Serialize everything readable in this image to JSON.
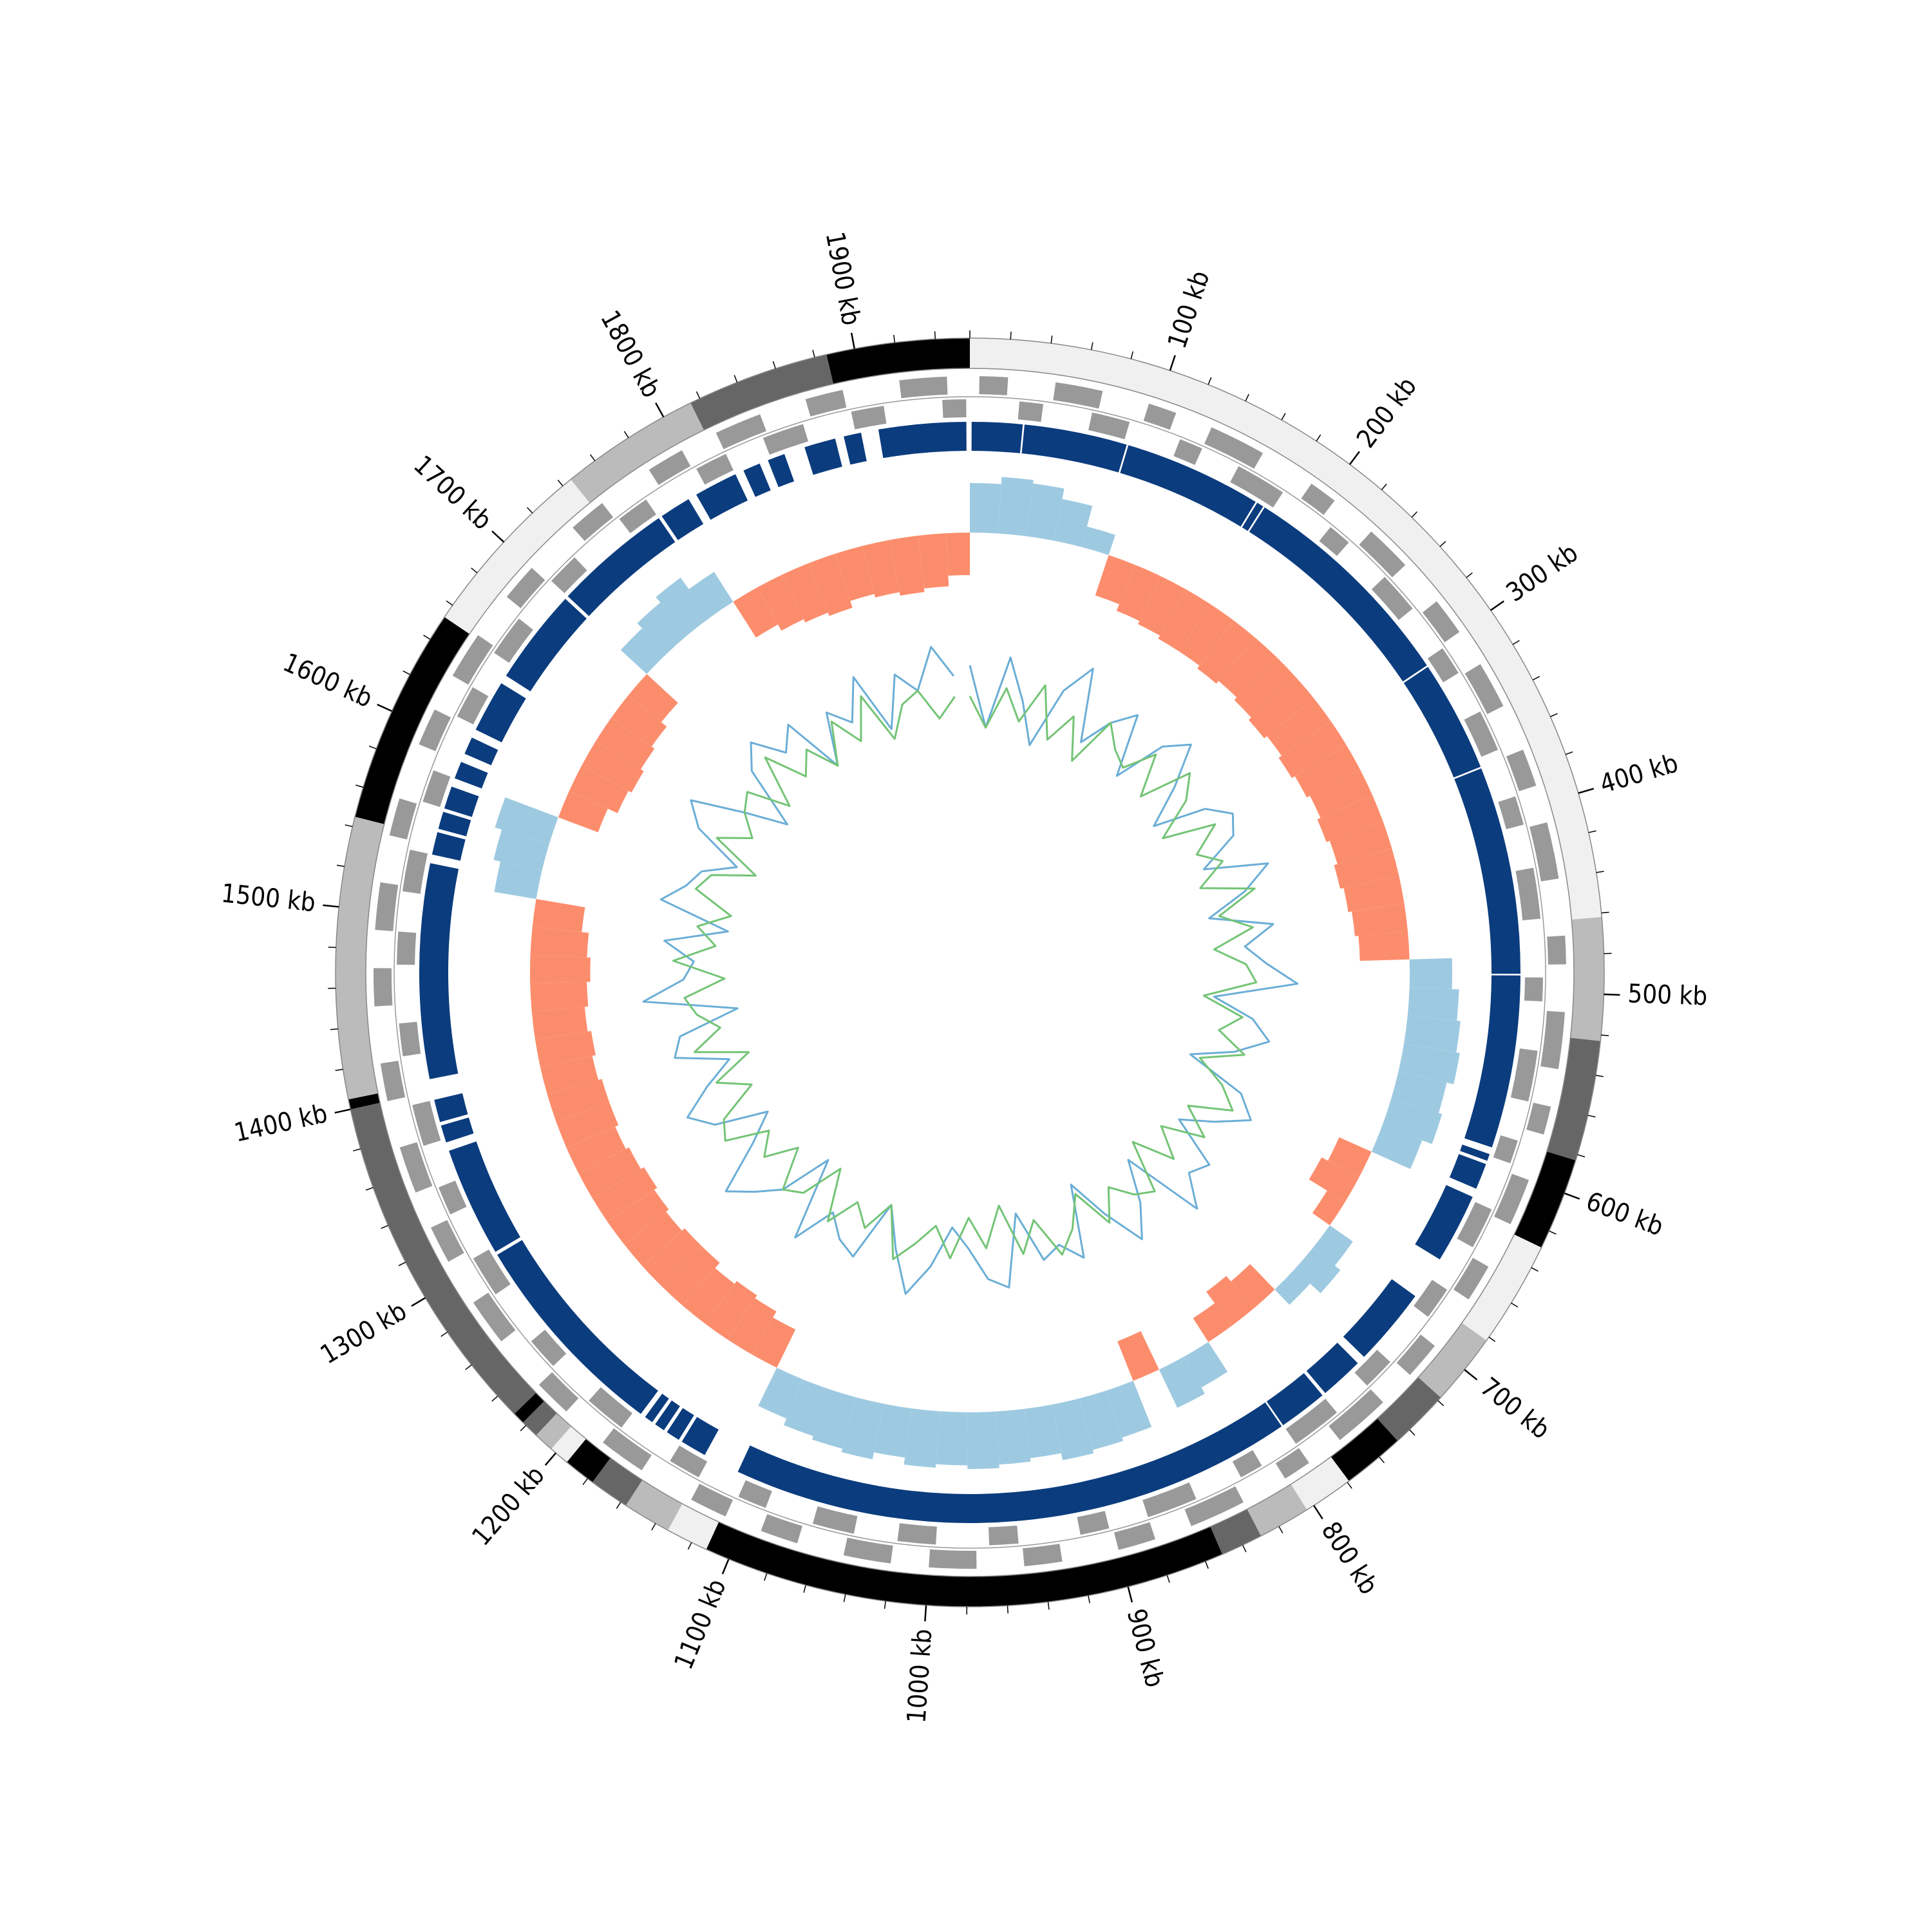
{
  "chart_data": {
    "type": "circular",
    "xlim": [
      0,
      1957
    ],
    "xticks": [
      {
        "value": 100,
        "label": "100 kb"
      },
      {
        "value": 200,
        "label": "200 kb"
      },
      {
        "value": 300,
        "label": "300 kb"
      },
      {
        "value": 400,
        "label": "400 kb"
      },
      {
        "value": 500,
        "label": "500 kb"
      },
      {
        "value": 600,
        "label": "600 kb"
      },
      {
        "value": 700,
        "label": "700 kb"
      },
      {
        "value": 800,
        "label": "800 kb"
      },
      {
        "value": 900,
        "label": "900 kb"
      },
      {
        "value": 1000,
        "label": "1000 kb"
      },
      {
        "value": 1100,
        "label": "1100 kb"
      },
      {
        "value": 1200,
        "label": "1200 kb"
      },
      {
        "value": 1300,
        "label": "1300 kb"
      },
      {
        "value": 1400,
        "label": "1400 kb"
      },
      {
        "value": 1500,
        "label": "1500 kb"
      },
      {
        "value": 1600,
        "label": "1600 kb"
      },
      {
        "value": 1700,
        "label": "1700 kb"
      },
      {
        "value": 1800,
        "label": "1800 kb"
      },
      {
        "value": 1900,
        "label": "1900 kb"
      }
    ],
    "minor_xticks": [
      0,
      20,
      40,
      60,
      80,
      120,
      140,
      160,
      180,
      220,
      240,
      260,
      280,
      320,
      340,
      360,
      380,
      420,
      440,
      460,
      480,
      520,
      540,
      560,
      580,
      620,
      640,
      660,
      680,
      720,
      740,
      760,
      780,
      820,
      840,
      860,
      880,
      920,
      940,
      960,
      980,
      1020,
      1040,
      1060,
      1080,
      1120,
      1140,
      1160,
      1180,
      1220,
      1240,
      1260,
      1280,
      1320,
      1340,
      1360,
      1380,
      1420,
      1440,
      1460,
      1480,
      1520,
      1540,
      1560,
      1580,
      1620,
      1640,
      1660,
      1680,
      1720,
      1740,
      1760,
      1780,
      1820,
      1840,
      1860,
      1880,
      1920,
      1940
    ],
    "bands": {
      "starts": [
        0,
        462,
        523,
        583,
        629,
        682,
        718,
        748,
        779,
        804,
        830,
        851,
        1112,
        1133,
        1157,
        1177,
        1193,
        1203,
        1213,
        1222,
        1228,
        1400,
        1405,
        1545,
        1653,
        1745,
        1815,
        1886
      ],
      "ends": [
        462,
        523,
        583,
        629,
        682,
        718,
        748,
        779,
        804,
        830,
        851,
        1112,
        1133,
        1157,
        1177,
        1193,
        1203,
        1213,
        1222,
        1228,
        1400,
        1405,
        1545,
        1653,
        1745,
        1815,
        1886,
        1957
      ],
      "colors": [
        "#f0f0f0",
        "#bbbbbb",
        "#666666",
        "#000000",
        "#f0f0f0",
        "#bbbbbb",
        "#666666",
        "#000000",
        "#f0f0f0",
        "#bbbbbb",
        "#666666",
        "#000000",
        "#f0f0f0",
        "#bbbbbb",
        "#666666",
        "#000000",
        "#f0f0f0",
        "#bbbbbb",
        "#666666",
        "#000000",
        "#666666",
        "#000000",
        "#bbbbbb",
        "#000000",
        "#f0f0f0",
        "#bbbbbb",
        "#666666",
        "#000000"
      ]
    },
    "genes": {
      "color": "#999999",
      "forward": [
        [
          5,
          20
        ],
        [
          45,
          70
        ],
        [
          95,
          110
        ],
        [
          130,
          160
        ],
        [
          190,
          205
        ],
        [
          230,
          255
        ],
        [
          280,
          300
        ],
        [
          320,
          345
        ],
        [
          370,
          390
        ],
        [
          410,
          440
        ],
        [
          470,
          485
        ],
        [
          510,
          540
        ],
        [
          560,
          575
        ],
        [
          600,
          625
        ],
        [
          650,
          670
        ],
        [
          700,
          720
        ],
        [
          740,
          770
        ],
        [
          790,
          805
        ],
        [
          830,
          860
        ],
        [
          880,
          900
        ],
        [
          930,
          950
        ],
        [
          975,
          1000
        ],
        [
          1020,
          1045
        ],
        [
          1070,
          1090
        ],
        [
          1110,
          1130
        ],
        [
          1160,
          1185
        ],
        [
          1210,
          1230
        ],
        [
          1260,
          1285
        ],
        [
          1310,
          1330
        ],
        [
          1350,
          1375
        ],
        [
          1400,
          1420
        ],
        [
          1450,
          1470
        ],
        [
          1490,
          1515
        ],
        [
          1540,
          1560
        ],
        [
          1590,
          1610
        ],
        [
          1630,
          1655
        ],
        [
          1680,
          1700
        ],
        [
          1730,
          1750
        ],
        [
          1780,
          1800
        ],
        [
          1820,
          1845
        ],
        [
          1870,
          1890
        ],
        [
          1920,
          1945
        ]
      ],
      "reverse": [
        [
          27,
          40
        ],
        [
          67,
          88
        ],
        [
          117,
          130
        ],
        [
          152,
          180
        ],
        [
          212,
          225
        ],
        [
          252,
          275
        ],
        [
          302,
          318
        ],
        [
          342,
          365
        ],
        [
          392,
          408
        ],
        [
          432,
          460
        ],
        [
          492,
          505
        ],
        [
          532,
          560
        ],
        [
          582,
          595
        ],
        [
          622,
          645
        ],
        [
          672,
          690
        ],
        [
          722,
          740
        ],
        [
          762,
          790
        ],
        [
          812,
          825
        ],
        [
          852,
          880
        ],
        [
          902,
          918
        ],
        [
          952,
          968
        ],
        [
          997,
          1018
        ],
        [
          1042,
          1065
        ],
        [
          1092,
          1108
        ],
        [
          1132,
          1150
        ],
        [
          1182,
          1205
        ],
        [
          1232,
          1250
        ],
        [
          1282,
          1305
        ],
        [
          1332,
          1348
        ],
        [
          1372,
          1395
        ],
        [
          1422,
          1440
        ],
        [
          1472,
          1490
        ],
        [
          1512,
          1535
        ],
        [
          1562,
          1580
        ],
        [
          1612,
          1630
        ],
        [
          1652,
          1675
        ],
        [
          1702,
          1720
        ],
        [
          1752,
          1770
        ],
        [
          1802,
          1820
        ],
        [
          1842,
          1865
        ],
        [
          1892,
          1910
        ],
        [
          1942,
          1955
        ]
      ]
    },
    "blocks": {
      "color": "#0b3c7e",
      "intervals": [
        [
          1,
          30
        ],
        [
          31,
          90
        ],
        [
          91,
          170
        ],
        [
          171,
          175
        ],
        [
          176,
          305
        ],
        [
          306,
          370
        ],
        [
          371,
          490
        ],
        [
          491,
          590
        ],
        [
          594,
          598
        ],
        [
          600,
          615
        ],
        [
          620,
          660
        ],
        [
          685,
          730
        ],
        [
          735,
          760
        ],
        [
          762,
          790
        ],
        [
          791,
          1114
        ],
        [
          1135,
          1150
        ],
        [
          1152,
          1160
        ],
        [
          1162,
          1168
        ],
        [
          1170,
          1175
        ],
        [
          1178,
          1300
        ],
        [
          1302,
          1365
        ],
        [
          1370,
          1380
        ],
        [
          1382,
          1395
        ],
        [
          1407,
          1530
        ],
        [
          1535,
          1548
        ],
        [
          1550,
          1560
        ],
        [
          1562,
          1575
        ],
        [
          1580,
          1590
        ],
        [
          1595,
          1605
        ],
        [
          1610,
          1640
        ],
        [
          1645,
          1700
        ],
        [
          1702,
          1770
        ],
        [
          1772,
          1790
        ],
        [
          1795,
          1820
        ],
        [
          1825,
          1835
        ],
        [
          1840,
          1850
        ],
        [
          1862,
          1880
        ],
        [
          1885,
          1895
        ],
        [
          1905,
          1955
        ]
      ]
    },
    "x": [
      0,
      20,
      40,
      60,
      80,
      100,
      120,
      140,
      160,
      180,
      200,
      220,
      240,
      260,
      280,
      300,
      320,
      340,
      360,
      380,
      400,
      420,
      440,
      460,
      480,
      500,
      520,
      540,
      560,
      580,
      600,
      620,
      640,
      660,
      680,
      700,
      720,
      740,
      760,
      780,
      800,
      820,
      840,
      860,
      880,
      900,
      920,
      940,
      960,
      980,
      1000,
      1020,
      1040,
      1060,
      1080,
      1100,
      1120,
      1140,
      1160,
      1180,
      1200,
      1220,
      1240,
      1260,
      1280,
      1300,
      1320,
      1340,
      1360,
      1380,
      1400,
      1420,
      1440,
      1460,
      1480,
      1500,
      1520,
      1540,
      1560,
      1580,
      1600,
      1620,
      1640,
      1660,
      1680,
      1700,
      1720,
      1740,
      1760,
      1780,
      1800,
      1820,
      1840,
      1860,
      1880,
      1900,
      1920,
      1940
    ],
    "skew": {
      "ylim": [
        -1,
        1
      ],
      "positive_color": "#9ecae1",
      "negative_color": "#fc8d6c",
      "values": [
        0.7,
        0.8,
        0.75,
        0.6,
        0.3,
        -0.6,
        -0.7,
        -0.75,
        -0.8,
        -0.8,
        -0.85,
        -0.8,
        -0.85,
        -0.9,
        -0.85,
        -0.9,
        -0.85,
        -0.8,
        -0.85,
        -0.8,
        -0.85,
        -0.8,
        -0.75,
        -0.7,
        0.6,
        0.7,
        0.75,
        0.8,
        0.7,
        0.75,
        0.6,
        -0.5,
        -0.6,
        -0.3,
        0.4,
        0.5,
        0.3,
        -0.5,
        -0.6,
        -0.4,
        0.5,
        0.6,
        -0.6,
        0.7,
        0.75,
        0.8,
        0.7,
        0.75,
        0.8,
        0.75,
        0.8,
        0.7,
        0.8,
        0.75,
        0.7,
        0.6,
        -0.6,
        -0.7,
        -0.75,
        -0.7,
        -0.8,
        -0.8,
        -0.75,
        -0.8,
        -0.85,
        -0.8,
        -0.75,
        -0.8,
        -0.8,
        -0.75,
        -0.8,
        -0.75,
        -0.8,
        -0.85,
        -0.8,
        -0.7,
        0.6,
        0.7,
        0.8,
        -0.6,
        -0.75,
        -0.8,
        -0.75,
        -0.7,
        -0.6,
        0.5,
        0.6,
        0.7,
        0.5,
        -0.6,
        -0.7,
        -0.75,
        -0.8,
        -0.7,
        -0.75,
        -0.8,
        -0.75,
        -0.6
      ]
    },
    "inner": {
      "ylim": [
        -1,
        1
      ],
      "series": [
        {
          "color": "#6baed6",
          "values": [
            0.4,
            -0.2,
            0.5,
            0.1,
            -0.3,
            0.3,
            0.6,
            -0.1,
            0.2,
            0.4,
            -0.2,
            0.3,
            0.5,
            0.1,
            -0.3,
            0.2,
            0.4,
            0.3,
            -0.1,
            0.5,
            0.2,
            -0.2,
            0.4,
            0.1,
            0.3,
            0.6,
            -0.2,
            0.2,
            0.4,
            0.1,
            -0.3,
            0.3,
            0.5,
            0.2,
            -0.1,
            0.4,
            0.3,
            0.6,
            -0.2,
            0.2,
            0.5,
            0.1,
            -0.3,
            0.4,
            0.2,
            0.3,
            -0.2,
            0.5,
            0.4,
            0.1,
            -0.1,
            0.3,
            0.6,
            0.2,
            -0.2,
            0.4,
            0.3,
            0.1,
            0.5,
            -0.3,
            0.2,
            0.4,
            0.6,
            0.1,
            -0.2,
            0.3,
            0.5,
            0.2,
            -0.1,
            0.4,
            0.3,
            -0.3,
            0.6,
            0.2,
            0.1,
            0.4,
            -0.2,
            0.5,
            0.3,
            0.2,
            -0.1,
            0.4,
            0.6,
            0.1,
            -0.3,
            0.3,
            0.5,
            0.2,
            0.4,
            -0.2,
            0.3,
            0.1,
            0.5,
            -0.1,
            0.4,
            0.2,
            0.6,
            0.3
          ]
        },
        {
          "color": "#74c476",
          "values": [
            0.1,
            -0.2,
            0.2,
            -0.1,
            0.3,
            -0.2,
            0.1,
            -0.3,
            0.2,
            0,
            -0.1,
            0.2,
            -0.2,
            0.3,
            0.1,
            -0.3,
            0.2,
            -0.1,
            0.1,
            -0.2,
            0.3,
            -0.1,
            0.2,
            -0.2,
            0.1,
            0.2,
            -0.3,
            0.1,
            -0.1,
            0.2,
            -0.2,
            0.1,
            0.3,
            -0.1,
            0.2,
            -0.2,
            0.1,
            -0.3,
            0.2,
            0.1,
            -0.1,
            0.2,
            -0.2,
            0.1,
            0.3,
            -0.1,
            0.2,
            -0.3,
            0.1,
            -0.2,
            0.2,
            -0.1,
            0.1,
            0.3,
            -0.2,
            0.1,
            -0.1,
            0.2,
            -0.3,
            0.1,
            0.2,
            -0.2,
            0.1,
            -0.1,
            0.3,
            0.2,
            -0.2,
            0.1,
            -0.3,
            0.2,
            -0.1,
            0.1,
            0.2,
            -0.2,
            0.3,
            -0.1,
            0.1,
            -0.2,
            0.2,
            0.1,
            -0.3,
            0.2,
            -0.1,
            0.1,
            0.2,
            -0.2,
            0.3,
            -0.1,
            0.1,
            -0.2,
            0.2,
            -0.1,
            0.3,
            -0.2,
            0.1,
            0.2,
            -0.1,
            0.1
          ]
        }
      ]
    }
  }
}
